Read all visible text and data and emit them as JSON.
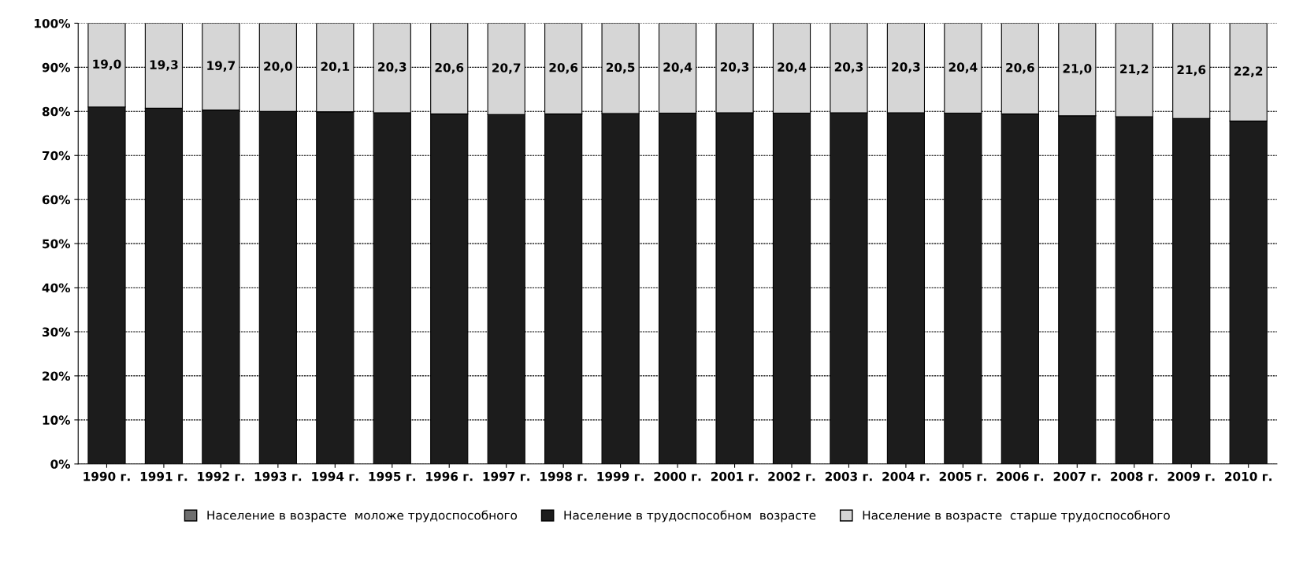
{
  "chart_data": {
    "type": "bar",
    "stacked": true,
    "categories": [
      "1990 г.",
      "1991 г.",
      "1992 г.",
      "1993 г.",
      "1994 г.",
      "1995 г.",
      "1996 г.",
      "1997 г.",
      "1998 г.",
      "1999 г.",
      "2000 г.",
      "2001 г.",
      "2002 г.",
      "2003 г.",
      "2004 г.",
      "2005 г.",
      "2006 г.",
      "2007 г.",
      "2008 г.",
      "2009 г.",
      "2010 г."
    ],
    "series": [
      {
        "name": "Население в возрасте  моложе трудоспособного",
        "color": "#6e6e6e",
        "values": [
          null,
          null,
          null,
          null,
          null,
          null,
          null,
          null,
          null,
          null,
          null,
          null,
          null,
          null,
          null,
          null,
          null,
          null,
          null,
          null,
          null
        ]
      },
      {
        "name": "Население в трудоспособном  возрасте",
        "color": "#1c1c1c",
        "values": [
          81.0,
          80.7,
          80.3,
          80.0,
          79.9,
          79.7,
          79.4,
          79.3,
          79.4,
          79.5,
          79.6,
          79.7,
          79.6,
          79.7,
          79.7,
          79.6,
          79.4,
          79.0,
          78.8,
          78.4,
          77.8
        ]
      },
      {
        "name": "Население в возрасте  старше трудоспособного",
        "color": "#d6d6d6",
        "values": [
          19.0,
          19.3,
          19.7,
          20.0,
          20.1,
          20.3,
          20.6,
          20.7,
          20.6,
          20.5,
          20.4,
          20.3,
          20.4,
          20.3,
          20.3,
          20.4,
          20.6,
          21.0,
          21.2,
          21.6,
          22.2
        ],
        "value_labels": [
          "19,0",
          "19,3",
          "19,7",
          "20,0",
          "20,1",
          "20,3",
          "20,6",
          "20,7",
          "20,6",
          "20,5",
          "20,4",
          "20,3",
          "20,4",
          "20,3",
          "20,3",
          "20,4",
          "20,6",
          "21,0",
          "21,2",
          "21,6",
          "22,2"
        ]
      }
    ],
    "ylim": [
      0,
      100
    ],
    "yticks": [
      {
        "value": 0,
        "label": "0%"
      },
      {
        "value": 10,
        "label": "10%"
      },
      {
        "value": 20,
        "label": "20%"
      },
      {
        "value": 30,
        "label": "30%"
      },
      {
        "value": 40,
        "label": "40%"
      },
      {
        "value": 50,
        "label": "50%"
      },
      {
        "value": 60,
        "label": "60%"
      },
      {
        "value": 70,
        "label": "70%"
      },
      {
        "value": 80,
        "label": "80%"
      },
      {
        "value": 90,
        "label": "90%"
      },
      {
        "value": 100,
        "label": "100%"
      }
    ],
    "grid": "y",
    "legend": "bottom"
  }
}
